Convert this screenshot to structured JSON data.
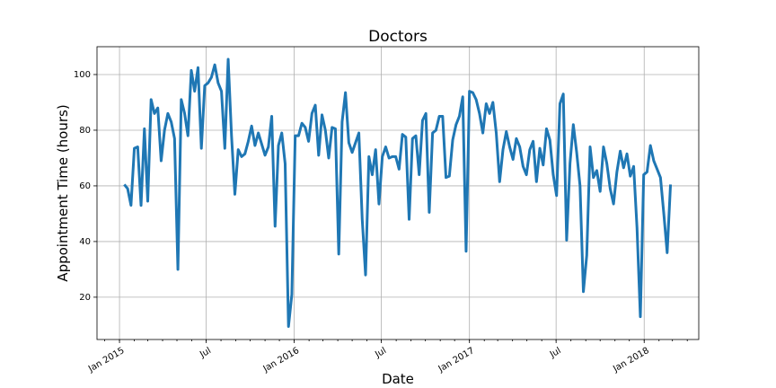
{
  "chart_data": {
    "type": "line",
    "title": "Doctors",
    "x_label": "Date",
    "y_label": "Appointment Time (hours)",
    "color": "#1f77b4",
    "grid": true,
    "x": [
      "2015-01-11",
      "2015-01-18",
      "2015-01-25",
      "2015-02-01",
      "2015-02-08",
      "2015-02-15",
      "2015-02-22",
      "2015-03-01",
      "2015-03-08",
      "2015-03-15",
      "2015-03-22",
      "2015-03-29",
      "2015-04-05",
      "2015-04-12",
      "2015-04-19",
      "2015-04-26",
      "2015-05-03",
      "2015-05-10",
      "2015-05-17",
      "2015-05-24",
      "2015-05-31",
      "2015-06-07",
      "2015-06-14",
      "2015-06-21",
      "2015-06-28",
      "2015-07-05",
      "2015-07-12",
      "2015-07-19",
      "2015-07-26",
      "2015-08-02",
      "2015-08-09",
      "2015-08-16",
      "2015-08-23",
      "2015-08-30",
      "2015-09-06",
      "2015-09-13",
      "2015-09-20",
      "2015-09-27",
      "2015-10-04",
      "2015-10-11",
      "2015-10-18",
      "2015-10-25",
      "2015-11-01",
      "2015-11-08",
      "2015-11-15",
      "2015-11-22",
      "2015-11-29",
      "2015-12-06",
      "2015-12-13",
      "2015-12-20",
      "2015-12-27",
      "2016-01-03",
      "2016-01-10",
      "2016-01-17",
      "2016-01-24",
      "2016-01-31",
      "2016-02-07",
      "2016-02-14",
      "2016-02-21",
      "2016-02-28",
      "2016-03-06",
      "2016-03-13",
      "2016-03-20",
      "2016-03-27",
      "2016-04-03",
      "2016-04-10",
      "2016-04-17",
      "2016-04-24",
      "2016-05-01",
      "2016-05-08",
      "2016-05-15",
      "2016-05-22",
      "2016-05-29",
      "2016-06-05",
      "2016-06-12",
      "2016-06-19",
      "2016-06-26",
      "2016-07-03",
      "2016-07-10",
      "2016-07-17",
      "2016-07-24",
      "2016-07-31",
      "2016-08-07",
      "2016-08-14",
      "2016-08-21",
      "2016-08-28",
      "2016-09-04",
      "2016-09-11",
      "2016-09-18",
      "2016-09-25",
      "2016-10-02",
      "2016-10-09",
      "2016-10-16",
      "2016-10-23",
      "2016-10-30",
      "2016-11-06",
      "2016-11-13",
      "2016-11-20",
      "2016-11-27",
      "2016-12-04",
      "2016-12-11",
      "2016-12-18",
      "2016-12-25",
      "2017-01-01",
      "2017-01-08",
      "2017-01-15",
      "2017-01-22",
      "2017-01-29",
      "2017-02-05",
      "2017-02-12",
      "2017-02-19",
      "2017-02-26",
      "2017-03-05",
      "2017-03-12",
      "2017-03-19",
      "2017-03-26",
      "2017-04-02",
      "2017-04-09",
      "2017-04-16",
      "2017-04-23",
      "2017-04-30",
      "2017-05-07",
      "2017-05-14",
      "2017-05-21",
      "2017-05-28",
      "2017-06-04",
      "2017-06-11",
      "2017-06-18",
      "2017-06-25",
      "2017-07-02",
      "2017-07-09",
      "2017-07-16",
      "2017-07-23",
      "2017-07-30",
      "2017-08-06",
      "2017-08-13",
      "2017-08-20",
      "2017-08-27",
      "2017-09-03",
      "2017-09-10",
      "2017-09-17",
      "2017-09-24",
      "2017-10-01",
      "2017-10-08",
      "2017-10-15",
      "2017-10-22",
      "2017-10-29",
      "2017-11-05",
      "2017-11-12",
      "2017-11-19",
      "2017-11-26",
      "2017-12-03",
      "2017-12-10",
      "2017-12-17",
      "2017-12-24",
      "2017-12-31",
      "2018-01-07",
      "2018-01-14",
      "2018-01-21",
      "2018-01-28",
      "2018-02-04",
      "2018-02-11",
      "2018-02-18",
      "2018-02-25"
    ],
    "values": [
      60.5,
      59,
      53,
      73.5,
      74,
      53,
      80.5,
      54.5,
      91,
      86,
      88,
      69,
      80,
      86,
      83,
      77,
      30,
      91,
      86,
      78,
      101.5,
      94,
      102.5,
      73.5,
      96,
      97,
      99,
      103.5,
      97,
      94,
      73.5,
      105.5,
      78,
      57,
      73,
      70.5,
      71.5,
      76,
      81.5,
      74.5,
      79,
      75,
      71,
      74,
      85,
      45.5,
      74.5,
      79,
      68,
      9.5,
      21,
      78,
      78,
      82.5,
      81,
      76,
      86,
      89,
      71,
      85.5,
      80,
      70,
      81,
      80.5,
      35.5,
      83,
      93.5,
      75.5,
      72,
      75.5,
      79,
      48,
      28,
      70.5,
      64,
      73,
      53.5,
      70.5,
      74,
      70,
      70.5,
      70.5,
      66,
      78.5,
      77.5,
      48,
      77,
      78,
      64,
      83.5,
      86,
      50.5,
      79,
      80,
      85,
      85,
      63,
      63.5,
      76.5,
      82,
      85,
      92,
      36.5,
      94,
      93.5,
      91,
      86,
      79,
      89.5,
      86,
      90,
      79,
      61.5,
      73,
      79.5,
      74,
      69.5,
      77,
      74,
      67,
      64,
      73,
      76,
      61.5,
      73.5,
      67.5,
      80.5,
      76.5,
      64,
      56.5,
      89.5,
      93,
      40.5,
      68,
      82,
      72,
      60,
      22,
      35,
      74,
      63,
      65.5,
      58,
      74,
      68,
      59,
      53.5,
      65,
      72.5,
      66.5,
      71.5,
      63.5,
      67,
      45,
      13,
      64,
      65,
      74.5,
      69,
      66,
      63,
      50,
      36,
      60.5
    ],
    "xlim": [
      "2014-11-15",
      "2018-04-25"
    ],
    "xticks": [
      {
        "value": "2015-01",
        "label": "Jan 2015"
      },
      {
        "value": "2015-07",
        "label": "Jul"
      },
      {
        "value": "2016-01",
        "label": "Jan 2016"
      },
      {
        "value": "2016-07",
        "label": "Jul"
      },
      {
        "value": "2017-01",
        "label": "Jan 2017"
      },
      {
        "value": "2017-07",
        "label": "Jul"
      },
      {
        "value": "2018-01",
        "label": "Jan 2018"
      }
    ],
    "ylim": [
      4.8,
      110
    ],
    "yticks": [
      20,
      40,
      60,
      80,
      100
    ]
  }
}
